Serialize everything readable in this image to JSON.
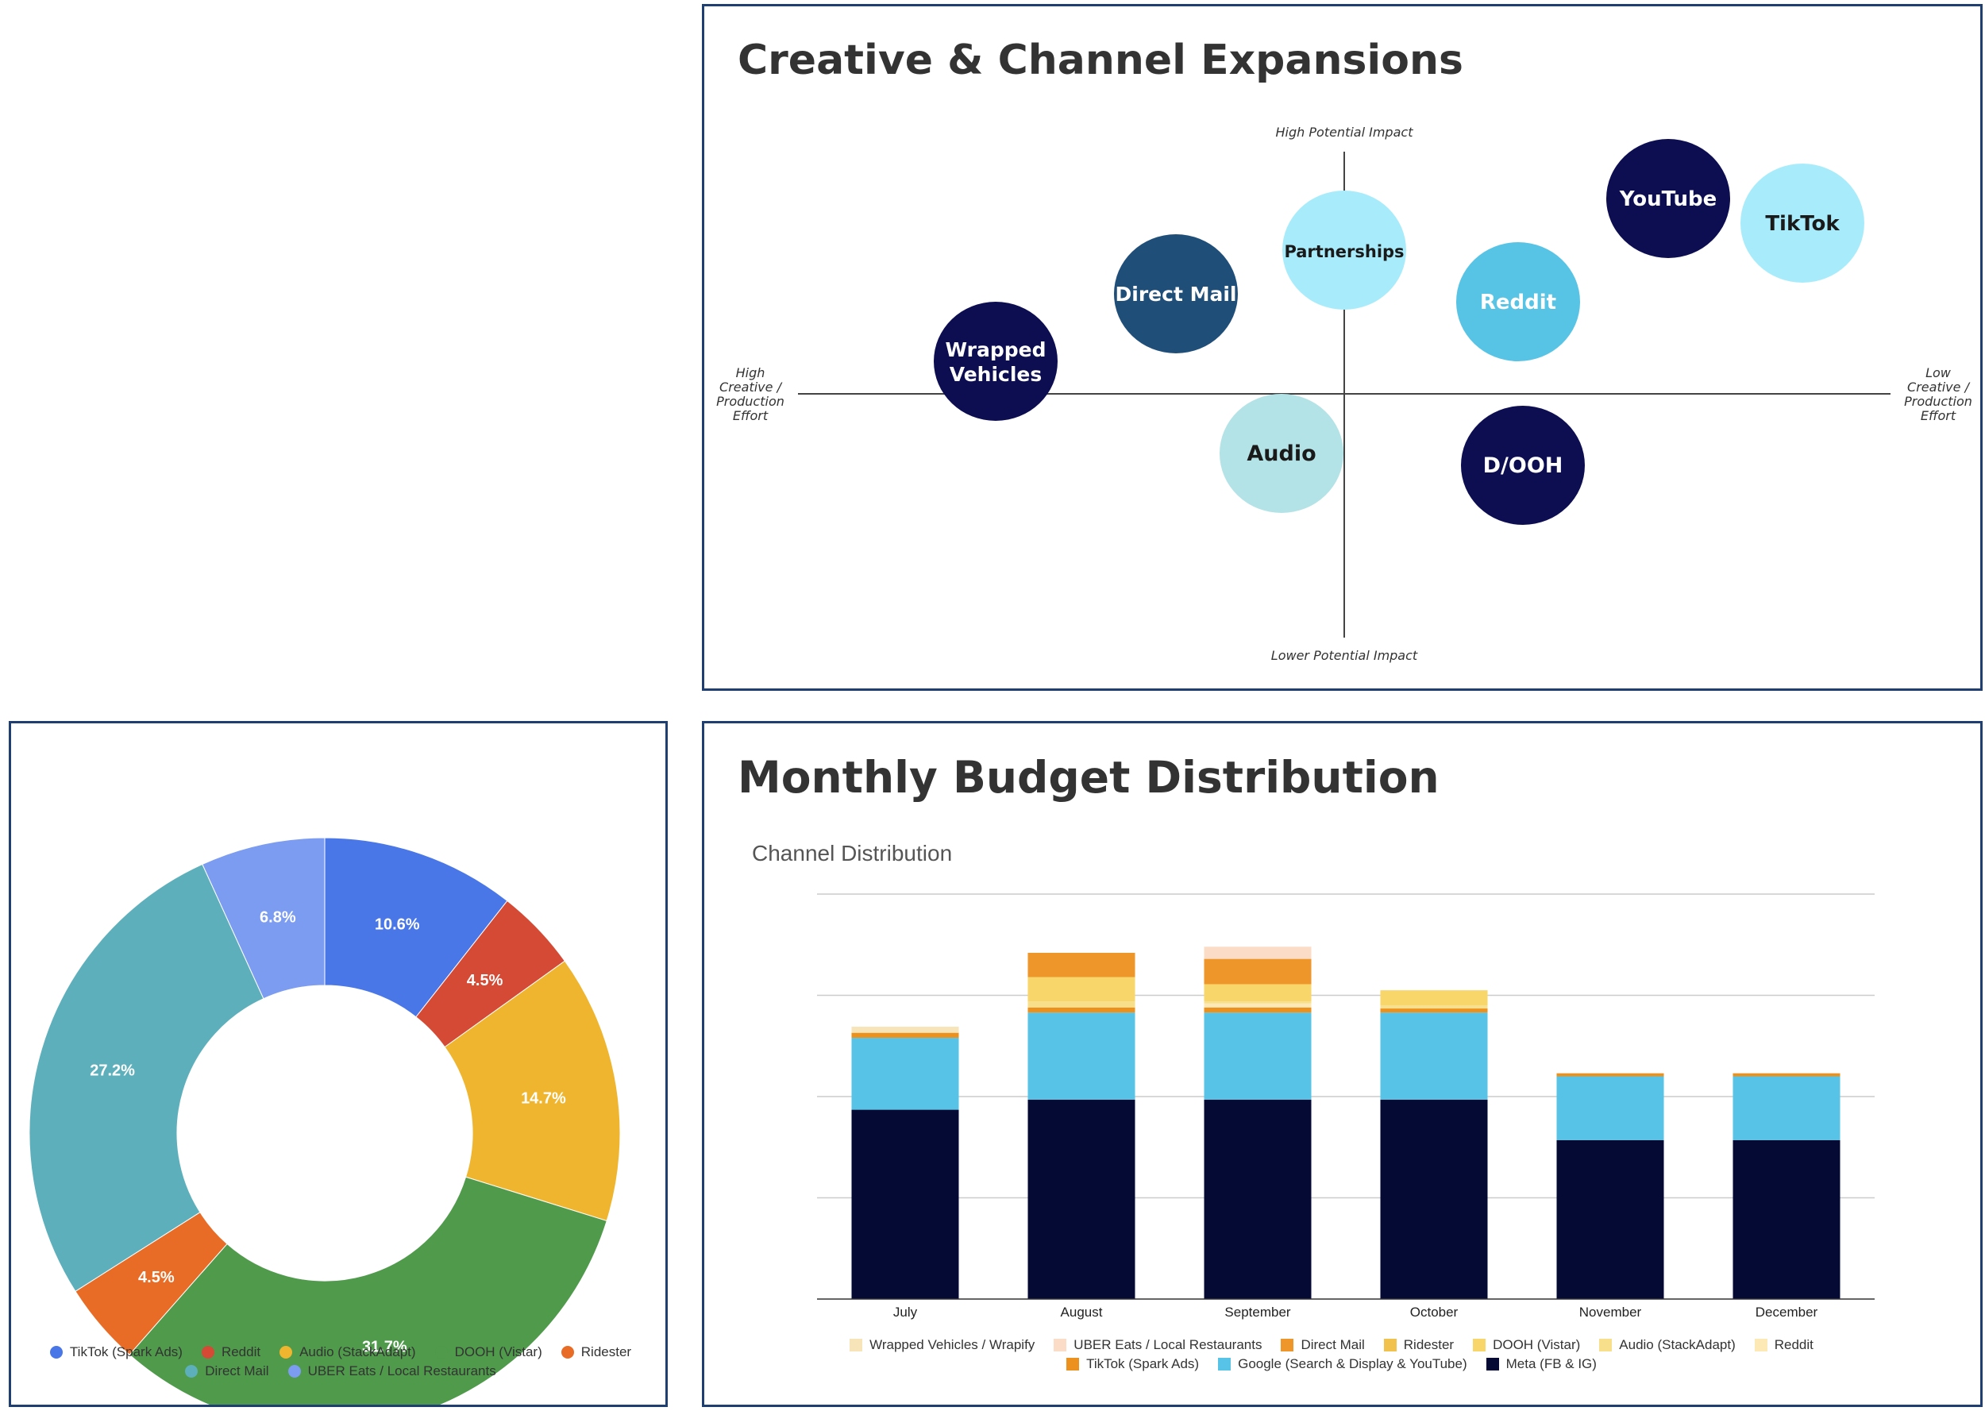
{
  "matrix": {
    "title": "Creative & Channel Expansions",
    "axis_labels": {
      "top": "High Potential Impact",
      "bottom": "Lower Potential Impact",
      "left": [
        "High",
        "Creative /",
        "Production",
        "Effort"
      ],
      "right": [
        "Low",
        "Creative /",
        "Production",
        "Effort"
      ]
    },
    "bubbles": [
      {
        "label": [
          "Wrapped",
          "Vehicles"
        ],
        "color": "#0d0d52",
        "text_color": "#ffffff"
      },
      {
        "label": [
          "Direct Mail"
        ],
        "color": "#1f4e79",
        "text_color": "#ffffff"
      },
      {
        "label": [
          "Partnerships"
        ],
        "color": "#a8ecfb",
        "text_color": "#1a1a1a"
      },
      {
        "label": [
          "Reddit"
        ],
        "color": "#57c4e5",
        "text_color": "#ffffff"
      },
      {
        "label": [
          "YouTube"
        ],
        "color": "#0d0d52",
        "text_color": "#ffffff"
      },
      {
        "label": [
          "TikTok"
        ],
        "color": "#a8ecfb",
        "text_color": "#1a1a1a"
      },
      {
        "label": [
          "Audio"
        ],
        "color": "#b3e3e6",
        "text_color": "#1a1a1a"
      },
      {
        "label": [
          "D/OOH"
        ],
        "color": "#0d0d52",
        "text_color": "#ffffff"
      }
    ]
  },
  "chart_data": [
    {
      "type": "pie",
      "donut": true,
      "slices": [
        {
          "label": "TikTok (Spark Ads)",
          "value": 10.6,
          "display": "10.6%",
          "color": "#4a77e8"
        },
        {
          "label": "Reddit",
          "value": 4.5,
          "display": "4.5%",
          "color": "#d44a35"
        },
        {
          "label": "Audio (StackAdapt)",
          "value": 14.7,
          "display": "14.7%",
          "color": "#efb52f"
        },
        {
          "label": "DOOH (Vistar)",
          "value": 31.7,
          "display": "31.7%",
          "color": "#4f9a4b"
        },
        {
          "label": "Ridester",
          "value": 4.5,
          "display": "4.5%",
          "color": "#e96c26"
        },
        {
          "label": "Direct Mail",
          "value": 27.2,
          "display": "27.2%",
          "color": "#5db0bb"
        },
        {
          "label": "UBER Eats / Local Restaurants",
          "value": 6.8,
          "display": "6.8%",
          "color": "#7c9cf1"
        }
      ],
      "legend_placement": "bottom"
    },
    {
      "type": "bar",
      "stacked": true,
      "title": "Monthly Budget Distribution",
      "subtitle": "Channel Distribution",
      "categories": [
        "July",
        "August",
        "September",
        "October",
        "November",
        "December"
      ],
      "ylim": [
        0,
        4
      ],
      "grid": true,
      "legend_placement": "bottom",
      "series": [
        {
          "name": "Meta (FB & IG)",
          "color": "#050a35",
          "values": [
            1.87,
            1.97,
            1.97,
            1.97,
            1.57,
            1.57
          ]
        },
        {
          "name": "Google (Search & Display & YouTube)",
          "color": "#57c4e7",
          "values": [
            0.71,
            0.86,
            0.86,
            0.86,
            0.63,
            0.63
          ]
        },
        {
          "name": "TikTok (Spark Ads)",
          "color": "#ec901e",
          "values": [
            0.05,
            0.05,
            0.05,
            0.04,
            0.03,
            0.03
          ]
        },
        {
          "name": "Reddit",
          "color": "#fde9b6",
          "values": [
            0,
            0,
            0.04,
            0,
            0,
            0
          ]
        },
        {
          "name": "Audio (StackAdapt)",
          "color": "#f8df8c",
          "values": [
            0,
            0.06,
            0.02,
            0.03,
            0,
            0
          ]
        },
        {
          "name": "DOOH (Vistar)",
          "color": "#f8d66a",
          "values": [
            0,
            0.24,
            0.17,
            0.15,
            0,
            0
          ]
        },
        {
          "name": "Ridester",
          "color": "#f2c34c",
          "values": [
            0,
            0,
            0,
            0,
            0,
            0
          ]
        },
        {
          "name": "Direct Mail",
          "color": "#ef962b",
          "values": [
            0,
            0.24,
            0.25,
            0,
            0,
            0
          ]
        },
        {
          "name": "UBER Eats / Local Restaurants",
          "color": "#fbdcc6",
          "values": [
            0,
            0,
            0.12,
            0,
            0,
            0
          ]
        },
        {
          "name": "Wrapped Vehicles / Wrapify",
          "color": "#f7e4b8",
          "values": [
            0.06,
            0,
            0,
            0,
            0,
            0
          ]
        }
      ],
      "legend_order": [
        "Wrapped Vehicles / Wrapify",
        "UBER Eats / Local Restaurants",
        "Direct Mail",
        "Ridester",
        "DOOH (Vistar)",
        "Audio (StackAdapt)",
        "Reddit",
        "TikTok (Spark Ads)",
        "Google (Search & Display & YouTube)",
        "Meta (FB & IG)"
      ]
    }
  ]
}
